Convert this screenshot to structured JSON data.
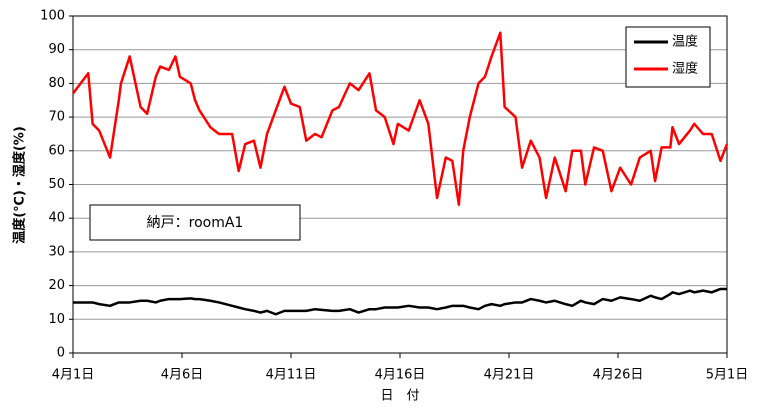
{
  "chart_data": {
    "type": "line",
    "y_label": "温度(℃)・湿度(%)",
    "x_label": "日　付",
    "annotation": "納戸：roomA1",
    "x": [
      0,
      0.7,
      0.9,
      1.2,
      1.7,
      2.1,
      2.2,
      2.6,
      3.1,
      3.4,
      3.8,
      4.0,
      4.4,
      4.7,
      4.9,
      5.4,
      5.6,
      5.8,
      6.3,
      6.7,
      7.3,
      7.6,
      7.9,
      8.3,
      8.6,
      8.9,
      9.3,
      9.7,
      10.0,
      10.4,
      10.7,
      11.1,
      11.4,
      11.9,
      12.2,
      12.7,
      13.1,
      13.6,
      13.9,
      14.3,
      14.7,
      14.9,
      15.4,
      15.9,
      16.3,
      16.7,
      17.1,
      17.4,
      17.7,
      17.9,
      18.2,
      18.6,
      18.9,
      19.2,
      19.6,
      19.8,
      20.3,
      20.6,
      21.0,
      21.4,
      21.7,
      22.1,
      22.6,
      22.9,
      23.3,
      23.5,
      23.9,
      24.3,
      24.7,
      25.1,
      25.6,
      26.0,
      26.5,
      26.7,
      27.0,
      27.4,
      27.5,
      27.8,
      28.3,
      28.5,
      28.9,
      29.3,
      29.7,
      30.0
    ],
    "series": [
      {
        "name": "温度",
        "color": "#000000",
        "values": [
          15,
          15,
          15,
          14.5,
          14,
          15,
          15,
          15,
          15.5,
          15.5,
          15,
          15.5,
          16,
          16,
          16,
          16.2,
          16,
          16,
          15.5,
          15,
          14,
          13.5,
          13,
          12.5,
          12,
          12.5,
          11.5,
          12.5,
          12.5,
          12.5,
          12.5,
          13,
          12.8,
          12.5,
          12.5,
          13,
          12,
          13,
          13,
          13.5,
          13.5,
          13.5,
          14,
          13.5,
          13.5,
          13,
          13.5,
          14,
          14,
          14,
          13.5,
          13,
          14,
          14.5,
          14,
          14.5,
          15,
          15,
          16,
          15.5,
          15,
          15.5,
          14.5,
          14,
          15.5,
          15,
          14.5,
          16,
          15.5,
          16.5,
          16,
          15.5,
          17,
          16.5,
          16,
          17.5,
          18,
          17.5,
          18.5,
          18,
          18.5,
          18,
          19,
          19
        ]
      },
      {
        "name": "湿度",
        "color": "#ff0000",
        "values": [
          77,
          83,
          68,
          66,
          58,
          75,
          80,
          88,
          73,
          71,
          82,
          85,
          84,
          88,
          82,
          80,
          75,
          72,
          67,
          65,
          65,
          54,
          62,
          63,
          55,
          65,
          72,
          79,
          74,
          73,
          63,
          65,
          64,
          72,
          73,
          80,
          78,
          83,
          72,
          70,
          62,
          68,
          66,
          75,
          68,
          46,
          58,
          57,
          44,
          60,
          70,
          80,
          82,
          88,
          95,
          73,
          70,
          55,
          63,
          58,
          46,
          58,
          48,
          60,
          60,
          50,
          61,
          60,
          48,
          55,
          50,
          58,
          60,
          51,
          61,
          61,
          67,
          62,
          66,
          68,
          65,
          65,
          57,
          62
        ]
      }
    ],
    "xlim": [
      0,
      30
    ],
    "xticks": [
      {
        "value": 0,
        "label": "4月1日"
      },
      {
        "value": 5,
        "label": "4月6日"
      },
      {
        "value": 10,
        "label": "4月11日"
      },
      {
        "value": 15,
        "label": "4月16日"
      },
      {
        "value": 20,
        "label": "4月21日"
      },
      {
        "value": 25,
        "label": "4月26日"
      },
      {
        "value": 30,
        "label": "5月1日"
      }
    ],
    "ylim": [
      0,
      100
    ],
    "yticks": [
      0,
      10,
      20,
      30,
      40,
      50,
      60,
      70,
      80,
      90,
      100
    ],
    "grid": true,
    "legend": "top-right"
  }
}
